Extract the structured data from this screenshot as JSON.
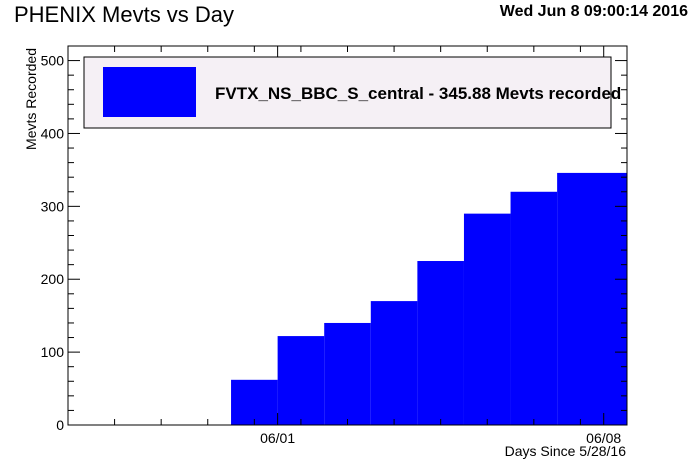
{
  "header": {
    "title": "PHENIX Mevts vs Day",
    "timestamp": "Wed Jun  8 09:00:14 2016"
  },
  "chart_data": {
    "type": "bar",
    "title": "PHENIX Mevts vs Day",
    "xlabel": "Days Since 5/28/16",
    "ylabel": "Mevts Recorded",
    "xlim": [
      -0.5,
      11.5
    ],
    "ylim": [
      0,
      520
    ],
    "yticks": [
      0,
      100,
      200,
      300,
      400,
      500
    ],
    "xticks": [
      {
        "value": 4,
        "label": "06/01"
      },
      {
        "value": 11,
        "label": "06/08"
      }
    ],
    "series": [
      {
        "name": "FVTX_NS_BBC_S_central - 345.88 Mevts recorded",
        "color": "#0000ff",
        "bins": [
          {
            "x0": 3.0,
            "x1": 4.0,
            "value": 62
          },
          {
            "x0": 4.0,
            "x1": 5.0,
            "value": 122
          },
          {
            "x0": 5.0,
            "x1": 6.0,
            "value": 140
          },
          {
            "x0": 6.0,
            "x1": 7.0,
            "value": 170
          },
          {
            "x0": 7.0,
            "x1": 8.0,
            "value": 225
          },
          {
            "x0": 8.0,
            "x1": 9.0,
            "value": 290
          },
          {
            "x0": 9.0,
            "x1": 10.0,
            "value": 320
          },
          {
            "x0": 10.0,
            "x1": 11.5,
            "value": 345.88
          }
        ]
      }
    ],
    "legend": {
      "position": "top",
      "background": "#f5f0f5"
    },
    "grid": false
  }
}
